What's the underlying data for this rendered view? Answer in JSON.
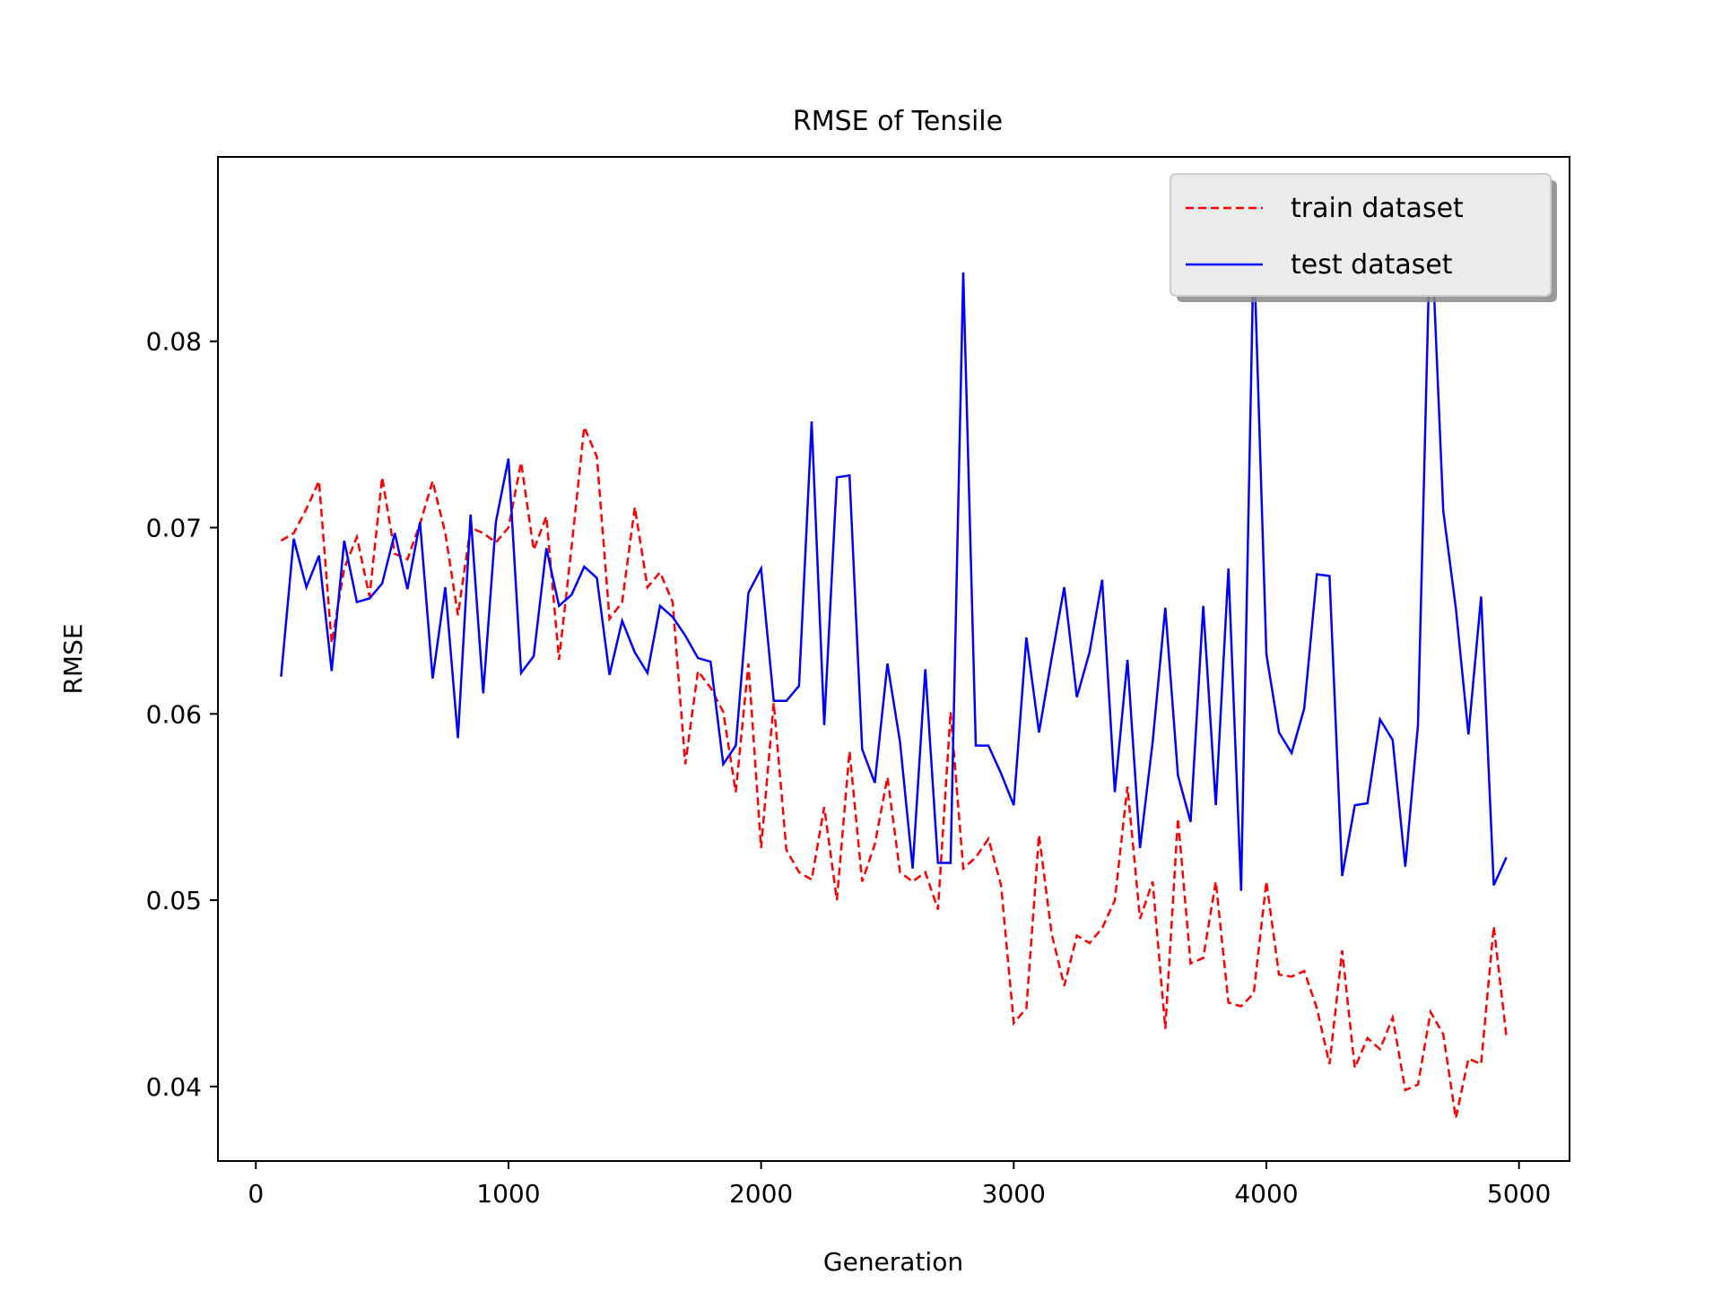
{
  "chart_data": {
    "type": "line",
    "title": "RMSE of Tensile",
    "xlabel": "Generation",
    "ylabel": "RMSE",
    "xlim": [
      -150,
      5200
    ],
    "ylim": [
      0.036,
      0.0899
    ],
    "xticks": [
      0,
      1000,
      2000,
      3000,
      4000,
      5000
    ],
    "xtick_labels": [
      "0",
      "1000",
      "2000",
      "3000",
      "4000",
      "5000"
    ],
    "yticks": [
      0.04,
      0.05,
      0.06,
      0.07,
      0.08
    ],
    "ytick_labels": [
      "0.04",
      "0.05",
      "0.06",
      "0.07",
      "0.08"
    ],
    "grid": false,
    "legend_position": "top-right",
    "x": [
      100,
      150,
      200,
      250,
      300,
      350,
      400,
      450,
      500,
      550,
      600,
      650,
      700,
      750,
      800,
      850,
      900,
      950,
      1000,
      1050,
      1100,
      1150,
      1200,
      1250,
      1300,
      1350,
      1400,
      1450,
      1500,
      1550,
      1600,
      1650,
      1700,
      1750,
      1800,
      1850,
      1900,
      1950,
      2000,
      2050,
      2100,
      2150,
      2200,
      2250,
      2300,
      2350,
      2400,
      2450,
      2500,
      2550,
      2600,
      2650,
      2700,
      2750,
      2800,
      2850,
      2900,
      2950,
      3000,
      3050,
      3100,
      3150,
      3200,
      3250,
      3300,
      3350,
      3400,
      3450,
      3500,
      3550,
      3600,
      3650,
      3700,
      3750,
      3800,
      3850,
      3900,
      3950,
      4000,
      4050,
      4100,
      4150,
      4200,
      4250,
      4300,
      4350,
      4400,
      4450,
      4500,
      4550,
      4600,
      4650,
      4700,
      4750,
      4800,
      4850,
      4900,
      4950
    ],
    "series": [
      {
        "name": "train dataset",
        "color": "#ff0000",
        "style": "dashed",
        "values": [
          0.0693,
          0.0697,
          0.071,
          0.0725,
          0.0638,
          0.0678,
          0.0695,
          0.0663,
          0.0727,
          0.0686,
          0.0683,
          0.0702,
          0.0725,
          0.0697,
          0.0653,
          0.07,
          0.0697,
          0.0692,
          0.07,
          0.0735,
          0.0688,
          0.0706,
          0.0629,
          0.069,
          0.0754,
          0.0738,
          0.0651,
          0.066,
          0.0711,
          0.0668,
          0.0676,
          0.066,
          0.0573,
          0.0623,
          0.0614,
          0.0601,
          0.0558,
          0.0627,
          0.0528,
          0.0606,
          0.0527,
          0.0515,
          0.0511,
          0.055,
          0.05,
          0.058,
          0.051,
          0.053,
          0.0566,
          0.0515,
          0.051,
          0.0515,
          0.0495,
          0.0601,
          0.0517,
          0.0523,
          0.0533,
          0.0508,
          0.0434,
          0.0442,
          0.0535,
          0.0482,
          0.0454,
          0.0481,
          0.0477,
          0.0485,
          0.05,
          0.0561,
          0.049,
          0.051,
          0.0431,
          0.0544,
          0.0466,
          0.0469,
          0.051,
          0.0445,
          0.0443,
          0.045,
          0.051,
          0.046,
          0.0459,
          0.0462,
          0.0442,
          0.0412,
          0.0473,
          0.041,
          0.0426,
          0.042,
          0.0437,
          0.0398,
          0.0401,
          0.044,
          0.0428,
          0.0383,
          0.0415,
          0.0412,
          0.0486,
          0.0427
        ]
      },
      {
        "name": "test dataset",
        "color": "#0000ff",
        "style": "solid",
        "values": [
          0.062,
          0.0694,
          0.0668,
          0.0685,
          0.0623,
          0.0693,
          0.066,
          0.0662,
          0.067,
          0.0697,
          0.0667,
          0.0703,
          0.0619,
          0.0668,
          0.0587,
          0.0707,
          0.0611,
          0.0703,
          0.0737,
          0.0622,
          0.0631,
          0.0689,
          0.0658,
          0.0664,
          0.0679,
          0.0673,
          0.0621,
          0.065,
          0.0633,
          0.0622,
          0.0658,
          0.0652,
          0.0642,
          0.063,
          0.0628,
          0.0573,
          0.0583,
          0.0665,
          0.0678,
          0.0607,
          0.0607,
          0.0615,
          0.0757,
          0.0594,
          0.0727,
          0.0728,
          0.0581,
          0.0563,
          0.0627,
          0.0585,
          0.0517,
          0.0624,
          0.052,
          0.052,
          0.0837,
          0.0583,
          0.0583,
          0.0568,
          0.0551,
          0.0641,
          0.059,
          0.063,
          0.0668,
          0.0609,
          0.0633,
          0.0672,
          0.0558,
          0.0629,
          0.0528,
          0.0585,
          0.0657,
          0.0567,
          0.0542,
          0.0658,
          0.0551,
          0.0678,
          0.0505,
          0.0852,
          0.0632,
          0.059,
          0.0579,
          0.0603,
          0.0675,
          0.0674,
          0.0513,
          0.0551,
          0.0552,
          0.0597,
          0.0586,
          0.0518,
          0.0594,
          0.087,
          0.0709,
          0.0657,
          0.0589,
          0.0663,
          0.0508,
          0.0523
        ]
      }
    ]
  }
}
